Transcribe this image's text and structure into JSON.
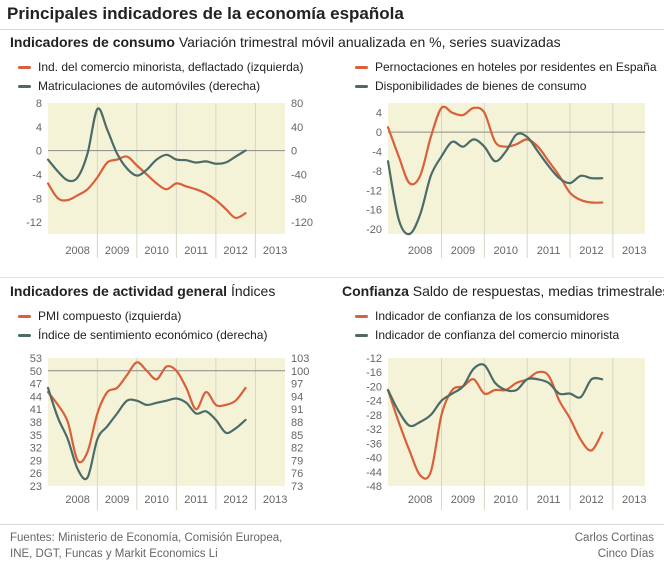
{
  "title": "Principales indicadores de la economía española",
  "colors": {
    "orange": "#d9603a",
    "teal": "#4b6b69",
    "bg": "#f5f3d7",
    "zero": "#8a8a8a"
  },
  "sections": {
    "consumo": {
      "title": "Indicadores de consumo",
      "subtitle": "Variación trimestral móvil anualizada en %, series suavizadas"
    },
    "actividad": {
      "title": "Indicadores de actividad general",
      "subtitle": "Índices"
    },
    "confianza": {
      "title": "Confianza",
      "subtitle": "Saldo de respuestas, medias trimestrales"
    }
  },
  "footer": {
    "sources_line1": "Fuentes: Ministerio de Economía, Comisión Europea,",
    "sources_line2": "INE, DGT, Funcas y Markit Economics Li",
    "author": "Carlos Cortinas",
    "outlet": "Cinco Días"
  },
  "chart_data": [
    {
      "type": "line",
      "legend": [
        "Ind. del comercio minorista, deflactado (izquierda)",
        "Matriculaciones de automóviles (derecha)"
      ],
      "years": [
        "2008",
        "2009",
        "2010",
        "2011",
        "2012",
        "2013"
      ],
      "ylim_left": [
        -14,
        8
      ],
      "yticks_left": [
        8,
        4,
        0,
        -4,
        -8,
        -12
      ],
      "ylim_right": [
        -140,
        80
      ],
      "yticks_right": [
        80,
        40,
        0,
        -40,
        -80,
        -120
      ],
      "zero": 0,
      "series": [
        {
          "name": "Ind. del comercio minorista, deflactado (izquierda)",
          "color": "orange",
          "axis": "left",
          "x": [
            2007.75,
            2008.0,
            2008.25,
            2008.5,
            2008.75,
            2009.0,
            2009.25,
            2009.5,
            2009.75,
            2010.0,
            2010.25,
            2010.5,
            2010.75,
            2011.0,
            2011.25,
            2011.5,
            2011.75,
            2012.0,
            2012.25,
            2012.5,
            2012.75
          ],
          "values": [
            -5.5,
            -8.0,
            -8.3,
            -7.5,
            -6.5,
            -4.5,
            -2.0,
            -1.5,
            -1.0,
            -2.5,
            -4.0,
            -5.5,
            -6.5,
            -5.5,
            -6.0,
            -6.5,
            -7.2,
            -8.3,
            -9.8,
            -11.3,
            -10.5
          ]
        },
        {
          "name": "Matriculaciones de automóviles (derecha)",
          "color": "teal",
          "axis": "right",
          "x": [
            2007.75,
            2008.0,
            2008.25,
            2008.5,
            2008.75,
            2009.0,
            2009.25,
            2009.5,
            2009.75,
            2010.0,
            2010.25,
            2010.5,
            2010.75,
            2011.0,
            2011.25,
            2011.5,
            2011.75,
            2012.0,
            2012.25,
            2012.5,
            2012.75
          ],
          "values": [
            -15,
            -35,
            -50,
            -45,
            -5,
            70,
            35,
            -5,
            -30,
            -42,
            -32,
            -15,
            -7,
            -15,
            -16,
            -20,
            -18,
            -22,
            -20,
            -10,
            0
          ]
        }
      ]
    },
    {
      "type": "line",
      "legend": [
        "Pernoctaciones en hoteles por residentes en España",
        "Disponibilidades de bienes de consumo"
      ],
      "years": [
        "2008",
        "2009",
        "2010",
        "2011",
        "2012",
        "2013"
      ],
      "ylim_left": [
        -21,
        6
      ],
      "yticks_left": [
        4,
        0,
        -4,
        -8,
        -12,
        -16,
        -20
      ],
      "zero": 0,
      "series": [
        {
          "name": "Pernoctaciones en hoteles por residentes en España",
          "color": "orange",
          "axis": "left",
          "x": [
            2007.75,
            2008.0,
            2008.25,
            2008.5,
            2008.75,
            2009.0,
            2009.25,
            2009.5,
            2009.75,
            2010.0,
            2010.25,
            2010.5,
            2010.75,
            2011.0,
            2011.25,
            2011.5,
            2011.75,
            2012.0,
            2012.25,
            2012.5,
            2012.75
          ],
          "values": [
            1.0,
            -5.0,
            -10.5,
            -9.0,
            -1.0,
            5.0,
            4.0,
            3.5,
            5.0,
            4.0,
            -2.0,
            -3.0,
            -2.5,
            -1.5,
            -3.0,
            -6.0,
            -9.0,
            -12.5,
            -14.0,
            -14.5,
            -14.5
          ]
        },
        {
          "name": "Disponibilidades de bienes de consumo",
          "color": "teal",
          "axis": "left",
          "x": [
            2007.75,
            2008.0,
            2008.25,
            2008.5,
            2008.75,
            2009.0,
            2009.25,
            2009.5,
            2009.75,
            2010.0,
            2010.25,
            2010.5,
            2010.75,
            2011.0,
            2011.25,
            2011.5,
            2011.75,
            2012.0,
            2012.25,
            2012.5,
            2012.75
          ],
          "values": [
            -6.0,
            -18.0,
            -21.0,
            -17.0,
            -9.0,
            -5.0,
            -2.0,
            -3.0,
            -1.5,
            -3.0,
            -6.0,
            -4.0,
            -0.5,
            -1.0,
            -4.0,
            -7.0,
            -9.5,
            -10.5,
            -9.0,
            -9.5,
            -9.5
          ]
        }
      ]
    },
    {
      "type": "line",
      "legend": [
        "PMI compuesto (izquierda)",
        "Índice de sentimiento económico (derecha)"
      ],
      "years": [
        "2008",
        "2009",
        "2010",
        "2011",
        "2012",
        "2013"
      ],
      "ylim_left": [
        23,
        53
      ],
      "yticks_left": [
        53,
        50,
        47,
        44,
        41,
        38,
        35,
        32,
        29,
        26,
        23
      ],
      "ylim_right": [
        73,
        103
      ],
      "yticks_right": [
        103,
        100,
        97,
        94,
        91,
        88,
        85,
        82,
        79,
        76,
        73
      ],
      "zero": 50,
      "series": [
        {
          "name": "PMI compuesto (izquierda)",
          "color": "orange",
          "axis": "left",
          "x": [
            2007.75,
            2008.0,
            2008.25,
            2008.5,
            2008.75,
            2009.0,
            2009.25,
            2009.5,
            2009.75,
            2010.0,
            2010.25,
            2010.5,
            2010.75,
            2011.0,
            2011.25,
            2011.5,
            2011.75,
            2012.0,
            2012.25,
            2012.5,
            2012.75
          ],
          "values": [
            45,
            42,
            38,
            29,
            31,
            40,
            45,
            46,
            49,
            52,
            50,
            48,
            51,
            50,
            46,
            41,
            45,
            42,
            42,
            43,
            46
          ]
        },
        {
          "name": "Índice de sentimiento económico (derecha)",
          "color": "teal",
          "axis": "right",
          "x": [
            2007.75,
            2008.0,
            2008.25,
            2008.5,
            2008.75,
            2009.0,
            2009.25,
            2009.5,
            2009.75,
            2010.0,
            2010.25,
            2010.5,
            2010.75,
            2011.0,
            2011.25,
            2011.5,
            2011.75,
            2012.0,
            2012.25,
            2012.5,
            2012.75
          ],
          "values": [
            96,
            89,
            84,
            77,
            75,
            84,
            87,
            90,
            93,
            93,
            92,
            92.5,
            93,
            93.5,
            92.5,
            90,
            90.5,
            88.5,
            85.5,
            86.5,
            88.5
          ]
        }
      ]
    },
    {
      "type": "line",
      "legend": [
        "Indicador de confianza de los consumidores",
        "Indicador de confianza del comercio minorista"
      ],
      "years": [
        "2008",
        "2009",
        "2010",
        "2011",
        "2012",
        "2013"
      ],
      "ylim_left": [
        -48,
        -12
      ],
      "yticks_left": [
        -12,
        -16,
        -20,
        -24,
        -28,
        -32,
        -36,
        -40,
        -44,
        -48
      ],
      "series": [
        {
          "name": "Indicador de confianza de los consumidores",
          "color": "orange",
          "axis": "left",
          "x": [
            2007.75,
            2008.0,
            2008.25,
            2008.5,
            2008.75,
            2009.0,
            2009.25,
            2009.5,
            2009.75,
            2010.0,
            2010.25,
            2010.5,
            2010.75,
            2011.0,
            2011.25,
            2011.5,
            2011.75,
            2012.0,
            2012.25,
            2012.5,
            2012.75
          ],
          "values": [
            -21,
            -30,
            -38,
            -45,
            -44,
            -28,
            -21,
            -20,
            -18,
            -22,
            -21,
            -21,
            -19,
            -18,
            -16,
            -17,
            -24,
            -29,
            -35,
            -38,
            -33
          ]
        },
        {
          "name": "Indicador de confianza del comercio minorista",
          "color": "teal",
          "axis": "left",
          "x": [
            2007.75,
            2008.0,
            2008.25,
            2008.5,
            2008.75,
            2009.0,
            2009.25,
            2009.5,
            2009.75,
            2010.0,
            2010.25,
            2010.5,
            2010.75,
            2011.0,
            2011.25,
            2011.5,
            2011.75,
            2012.0,
            2012.25,
            2012.5,
            2012.75
          ],
          "values": [
            -21,
            -27,
            -31,
            -30,
            -28,
            -24,
            -22,
            -20,
            -15,
            -14,
            -19,
            -21,
            -21,
            -18,
            -18,
            -19,
            -22,
            -22,
            -23,
            -18,
            -18
          ]
        }
      ]
    }
  ]
}
